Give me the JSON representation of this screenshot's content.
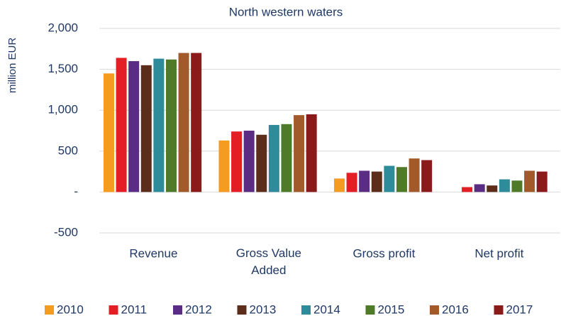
{
  "chart_data": {
    "type": "bar",
    "title": "North western waters",
    "y_label": "million EUR",
    "categories": [
      "Revenue",
      "Gross Value Added",
      "Gross profit",
      "Net profit"
    ],
    "series": [
      {
        "name": "2010",
        "color": "#f39c1f",
        "values": [
          1450,
          630,
          165,
          0
        ]
      },
      {
        "name": "2011",
        "color": "#e31e24",
        "values": [
          1640,
          740,
          235,
          60
        ]
      },
      {
        "name": "2012",
        "color": "#5b2c83",
        "values": [
          1600,
          750,
          260,
          95
        ]
      },
      {
        "name": "2013",
        "color": "#5c2d1a",
        "values": [
          1550,
          700,
          250,
          80
        ]
      },
      {
        "name": "2014",
        "color": "#2e8b9a",
        "values": [
          1630,
          820,
          320,
          155
        ]
      },
      {
        "name": "2015",
        "color": "#4f7a28",
        "values": [
          1620,
          830,
          305,
          140
        ]
      },
      {
        "name": "2016",
        "color": "#a35a2a",
        "values": [
          1700,
          940,
          410,
          260
        ]
      },
      {
        "name": "2017",
        "color": "#8b1a1a",
        "values": [
          1700,
          950,
          390,
          250
        ]
      }
    ],
    "ylim": [
      -500,
      2000
    ],
    "yticks": [
      {
        "value": -500,
        "label": "-500"
      },
      {
        "value": 0,
        "label": "-"
      },
      500,
      {
        "value": 1000,
        "label": "1,000"
      },
      {
        "value": 1500,
        "label": "1,500"
      },
      {
        "value": 2000,
        "label": "2,000"
      }
    ],
    "grid": true,
    "legend": "bottom"
  }
}
